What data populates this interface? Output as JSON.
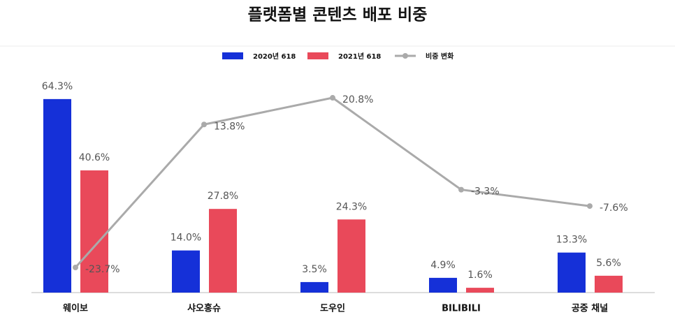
{
  "chart_data": {
    "type": "bar",
    "title": "플랫폼별 콘텐츠 배포 비중",
    "categories": [
      "웨이보",
      "샤오홍슈",
      "도우인",
      "BILIBILI",
      "공중 채널"
    ],
    "series": [
      {
        "name": "2020년 618",
        "color": "#1530d8",
        "values": [
          64.3,
          14.0,
          3.5,
          4.9,
          13.3
        ],
        "value_labels": [
          "64.3%",
          "14.0%",
          "3.5%",
          "4.9%",
          "13.3%"
        ]
      },
      {
        "name": "2021년 618",
        "color": "#e9495a",
        "values": [
          40.6,
          27.8,
          24.3,
          1.6,
          5.6
        ],
        "value_labels": [
          "40.6%",
          "27.8%",
          "24.3%",
          "1.6%",
          "5.6%"
        ]
      },
      {
        "name": "비중 변화",
        "color": "#aaaaaa",
        "axis": "y2",
        "values": [
          -23.7,
          13.8,
          20.8,
          -3.3,
          -7.6
        ],
        "value_labels": [
          "-23.7%",
          "13.8%",
          "20.8%",
          "-3.3%",
          "-7.6%"
        ]
      }
    ]
  }
}
